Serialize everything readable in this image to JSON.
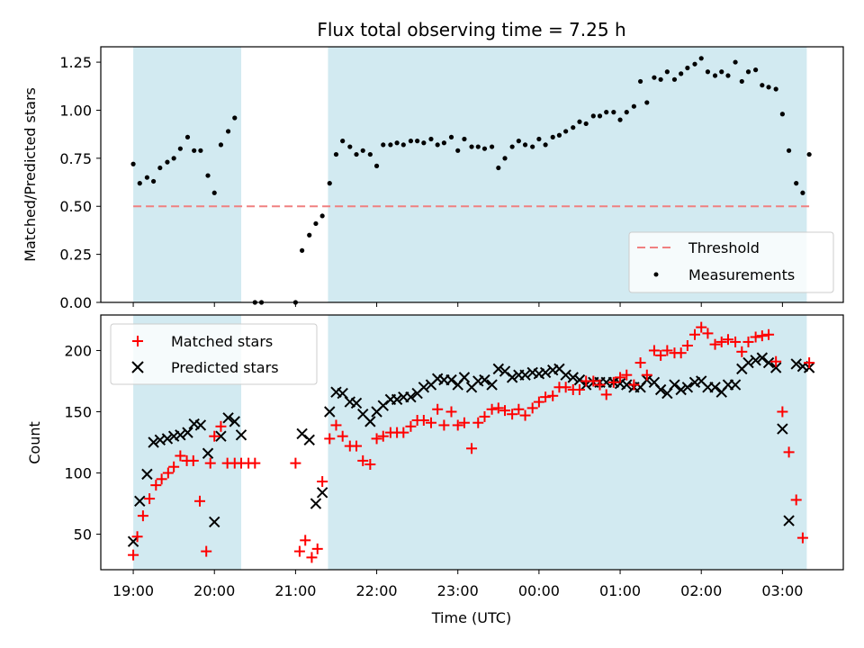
{
  "chart_data": {
    "type": "scatter",
    "title": "Flux total observing time = 7.25 h",
    "xlabel": "Time (UTC)",
    "x_ticks": [
      "19:00",
      "20:00",
      "21:00",
      "22:00",
      "23:00",
      "00:00",
      "01:00",
      "02:00",
      "03:00"
    ],
    "x_range_hours": [
      18.6,
      27.75
    ],
    "shaded_intervals_hours": [
      [
        19.0,
        20.33
      ],
      [
        21.4,
        27.3
      ]
    ],
    "colors": {
      "shade": "#add8e6",
      "matched": "#ff0000",
      "predicted": "#000000",
      "threshold": "#f08080",
      "measure": "#000000"
    },
    "panels": [
      {
        "ylabel": "Matched/Predicted stars",
        "ylim": [
          0,
          1.33
        ],
        "yticks": [
          "0.00",
          "0.25",
          "0.50",
          "0.75",
          "1.00",
          "1.25"
        ],
        "legend_loc": "lower right",
        "threshold": {
          "name": "Threshold",
          "value": 0.5
        },
        "series": [
          {
            "name": "Measurements",
            "marker": "dot",
            "x": [
              19.0,
              19.08,
              19.17,
              19.25,
              19.33,
              19.42,
              19.5,
              19.58,
              19.67,
              19.75,
              19.83,
              19.92,
              20.0,
              20.08,
              20.17,
              20.25,
              20.5,
              20.58,
              21.0,
              21.08,
              21.17,
              21.25,
              21.33,
              21.42,
              21.5,
              21.58,
              21.67,
              21.75,
              21.83,
              21.92,
              22.0,
              22.08,
              22.17,
              22.25,
              22.33,
              22.42,
              22.5,
              22.58,
              22.67,
              22.75,
              22.83,
              22.92,
              23.0,
              23.08,
              23.17,
              23.25,
              23.33,
              23.42,
              23.5,
              23.58,
              23.67,
              23.75,
              23.83,
              23.92,
              24.0,
              24.08,
              24.17,
              24.25,
              24.33,
              24.42,
              24.5,
              24.58,
              24.67,
              24.75,
              24.83,
              24.92,
              25.0,
              25.08,
              25.17,
              25.25,
              25.33,
              25.42,
              25.5,
              25.58,
              25.67,
              25.75,
              25.83,
              25.92,
              26.0,
              26.08,
              26.17,
              26.25,
              26.33,
              26.42,
              26.5,
              26.58,
              26.67,
              26.75,
              26.83,
              26.92,
              27.0,
              27.08,
              27.17,
              27.25,
              27.33
            ],
            "y": [
              0.72,
              0.62,
              0.65,
              0.63,
              0.7,
              0.73,
              0.75,
              0.8,
              0.86,
              0.79,
              0.79,
              0.66,
              0.57,
              0.82,
              0.89,
              0.96,
              0.0,
              0.0,
              0.0,
              0.27,
              0.35,
              0.41,
              0.45,
              0.62,
              0.77,
              0.84,
              0.81,
              0.77,
              0.79,
              0.77,
              0.71,
              0.82,
              0.82,
              0.83,
              0.82,
              0.84,
              0.84,
              0.83,
              0.85,
              0.82,
              0.83,
              0.86,
              0.79,
              0.85,
              0.81,
              0.81,
              0.8,
              0.81,
              0.7,
              0.75,
              0.81,
              0.84,
              0.82,
              0.81,
              0.85,
              0.82,
              0.86,
              0.87,
              0.89,
              0.91,
              0.94,
              0.93,
              0.97,
              0.97,
              0.99,
              0.99,
              0.95,
              0.99,
              1.02,
              1.15,
              1.04,
              1.17,
              1.16,
              1.2,
              1.16,
              1.19,
              1.22,
              1.24,
              1.27,
              1.2,
              1.18,
              1.2,
              1.18,
              1.25,
              1.15,
              1.2,
              1.21,
              1.13,
              1.12,
              1.11,
              0.98,
              0.79,
              0.62,
              0.57,
              0.77
            ]
          }
        ]
      },
      {
        "ylabel": "Count",
        "ylim": [
          21,
          229
        ],
        "yticks": [
          "50",
          "100",
          "150",
          "200"
        ],
        "legend_loc": "upper left",
        "series": [
          {
            "name": "Matched stars",
            "marker": "plus",
            "x": [
              19.0,
              19.05,
              19.12,
              19.2,
              19.28,
              19.35,
              19.43,
              19.5,
              19.58,
              19.66,
              19.74,
              19.82,
              19.9,
              19.95,
              20.0,
              20.08,
              20.16,
              20.25,
              20.33,
              20.42,
              20.5,
              21.0,
              21.05,
              21.12,
              21.2,
              21.27,
              21.33,
              21.42,
              21.5,
              21.58,
              21.67,
              21.75,
              21.83,
              21.92,
              22.0,
              22.08,
              22.17,
              22.25,
              22.33,
              22.42,
              22.5,
              22.58,
              22.67,
              22.75,
              22.83,
              22.92,
              23.0,
              23.08,
              23.17,
              23.25,
              23.33,
              23.42,
              23.5,
              23.58,
              23.67,
              23.75,
              23.83,
              23.92,
              24.0,
              24.08,
              24.17,
              24.25,
              24.33,
              24.42,
              24.5,
              24.58,
              24.67,
              24.75,
              24.83,
              24.92,
              25.0,
              25.08,
              25.17,
              25.25,
              25.33,
              25.42,
              25.5,
              25.58,
              25.67,
              25.75,
              25.83,
              25.92,
              26.0,
              26.08,
              26.17,
              26.25,
              26.33,
              26.42,
              26.5,
              26.58,
              26.67,
              26.75,
              26.83,
              26.92,
              27.0,
              27.08,
              27.17,
              27.25,
              27.33
            ],
            "y": [
              33,
              48,
              65,
              79,
              90,
              95,
              100,
              105,
              114,
              110,
              110,
              77,
              36,
              108,
              130,
              138,
              108,
              108,
              108,
              108,
              108,
              108,
              36,
              45,
              31,
              38,
              93,
              128,
              139,
              130,
              122,
              122,
              110,
              107,
              128,
              130,
              133,
              133,
              133,
              138,
              143,
              143,
              141,
              152,
              139,
              150,
              139,
              141,
              120,
              141,
              146,
              152,
              153,
              151,
              148,
              152,
              147,
              153,
              158,
              162,
              163,
              170,
              170,
              168,
              168,
              175,
              175,
              172,
              164,
              174,
              178,
              180,
              172,
              190,
              180,
              200,
              196,
              200,
              198,
              198,
              204,
              213,
              219,
              214,
              205,
              207,
              209,
              207,
              199,
              207,
              211,
              212,
              213,
              191,
              150,
              117,
              78,
              47,
              190
            ]
          },
          {
            "name": "Predicted stars",
            "marker": "x",
            "x": [
              19.0,
              19.08,
              19.17,
              19.25,
              19.33,
              19.42,
              19.5,
              19.58,
              19.67,
              19.75,
              19.83,
              19.92,
              20.0,
              20.08,
              20.17,
              20.25,
              20.33,
              21.08,
              21.17,
              21.25,
              21.33,
              21.42,
              21.5,
              21.58,
              21.67,
              21.75,
              21.83,
              21.92,
              22.0,
              22.08,
              22.17,
              22.25,
              22.33,
              22.42,
              22.5,
              22.58,
              22.67,
              22.75,
              22.83,
              22.92,
              23.0,
              23.08,
              23.17,
              23.25,
              23.33,
              23.42,
              23.5,
              23.58,
              23.67,
              23.75,
              23.83,
              23.92,
              24.0,
              24.08,
              24.17,
              24.25,
              24.33,
              24.42,
              24.5,
              24.58,
              24.67,
              24.75,
              24.83,
              24.92,
              25.0,
              25.08,
              25.17,
              25.25,
              25.33,
              25.42,
              25.5,
              25.58,
              25.67,
              25.75,
              25.83,
              25.92,
              26.0,
              26.08,
              26.17,
              26.25,
              26.33,
              26.42,
              26.5,
              26.58,
              26.67,
              26.75,
              26.83,
              26.92,
              27.0,
              27.08,
              27.17,
              27.25,
              27.33
            ],
            "y": [
              44,
              77,
              99,
              125,
              127,
              128,
              130,
              131,
              133,
              140,
              139,
              116,
              60,
              130,
              145,
              142,
              131,
              132,
              127,
              75,
              84,
              150,
              166,
              165,
              158,
              157,
              148,
              142,
              150,
              155,
              160,
              160,
              162,
              162,
              165,
              170,
              172,
              177,
              176,
              176,
              172,
              178,
              170,
              175,
              176,
              172,
              185,
              183,
              178,
              180,
              180,
              182,
              181,
              182,
              184,
              185,
              180,
              178,
              176,
              172,
              174,
              174,
              174,
              174,
              173,
              172,
              170,
              170,
              176,
              174,
              168,
              165,
              172,
              168,
              170,
              174,
              175,
              170,
              170,
              166,
              172,
              172,
              185,
              190,
              192,
              194,
              190,
              186,
              136,
              61,
              189,
              187,
              186
            ]
          }
        ]
      }
    ]
  }
}
